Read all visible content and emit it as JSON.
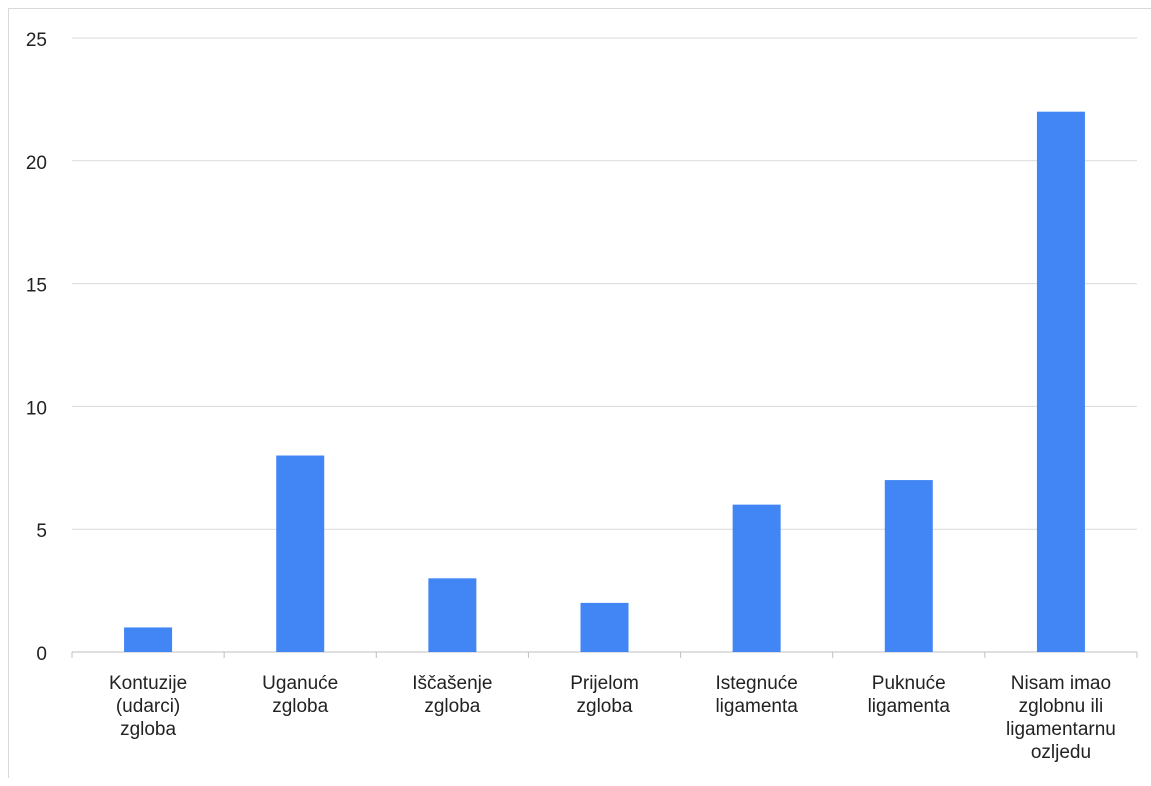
{
  "chart_data": {
    "type": "bar",
    "title": "",
    "xlabel": "",
    "ylabel": "",
    "categories": [
      [
        "Kontuzije",
        "(udarci)",
        "zgloba"
      ],
      [
        "Uganuće",
        "zgloba"
      ],
      [
        "Iščašenje",
        "zgloba"
      ],
      [
        "Prijelom",
        "zgloba"
      ],
      [
        "Istegnuće",
        "ligamenta"
      ],
      [
        "Puknuće",
        "ligamenta"
      ],
      [
        "Nisam imao",
        "zglobnu ili",
        "ligamentarnu",
        "ozljedu"
      ]
    ],
    "values": [
      1,
      8,
      3,
      2,
      6,
      7,
      22
    ],
    "ylim": [
      0,
      25
    ],
    "yticks": [
      0,
      5,
      10,
      15,
      20,
      25
    ],
    "grid": true,
    "legend": "none",
    "colors": {
      "bar": "#4285f4",
      "grid": "#d9d9d9",
      "axis": "#bfbfbf",
      "text": "#222222"
    }
  }
}
